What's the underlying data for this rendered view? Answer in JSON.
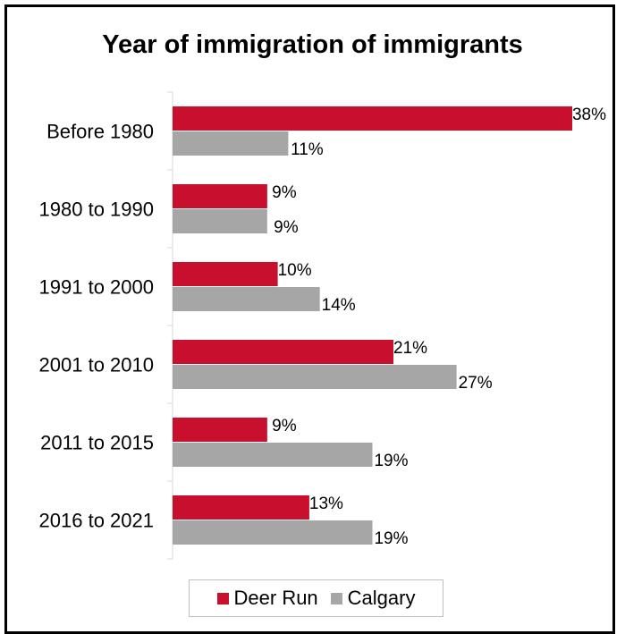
{
  "chart_data": {
    "type": "bar",
    "orientation": "horizontal",
    "title": "Year of immigration of immigrants",
    "categories": [
      "Before 1980",
      "1980 to 1990",
      "1991 to 2000",
      "2001 to 2010",
      "2011 to 2015",
      "2016 to 2021"
    ],
    "series": [
      {
        "name": "Deer Run",
        "color": "#c8102e",
        "values": [
          38,
          9,
          10,
          21,
          9,
          13
        ],
        "labels": [
          "38%",
          "9%",
          "10%",
          "21%",
          "9%",
          "13%"
        ]
      },
      {
        "name": "Calgary",
        "color": "#a6a6a6",
        "values": [
          11,
          9,
          14,
          27,
          19,
          19
        ],
        "labels": [
          "11%",
          "9%",
          "14%",
          "27%",
          "19%",
          "19%"
        ]
      }
    ],
    "xlim": [
      0,
      38
    ],
    "grid": false,
    "legend_position": "bottom"
  }
}
